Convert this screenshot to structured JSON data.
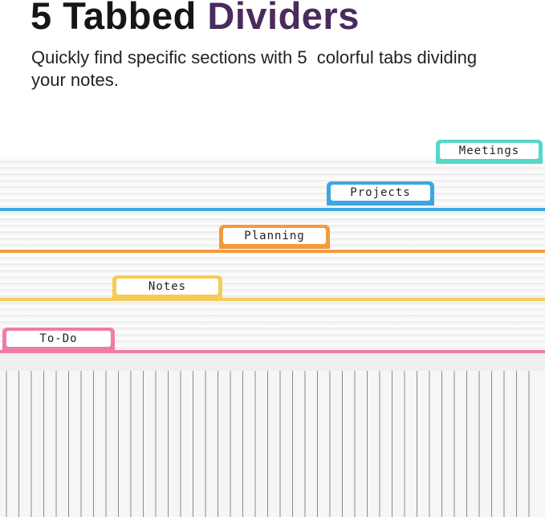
{
  "header": {
    "title": {
      "lead": "5 Tabbed",
      "highlight": "Dividers"
    },
    "subtitle": "Quickly find specific sections with 5  colorful tabs dividing your notes."
  },
  "tabs": [
    {
      "label": "Meetings"
    },
    {
      "label": "Projects"
    },
    {
      "label": "Planning"
    },
    {
      "label": "Notes"
    },
    {
      "label": "To-Do"
    }
  ]
}
